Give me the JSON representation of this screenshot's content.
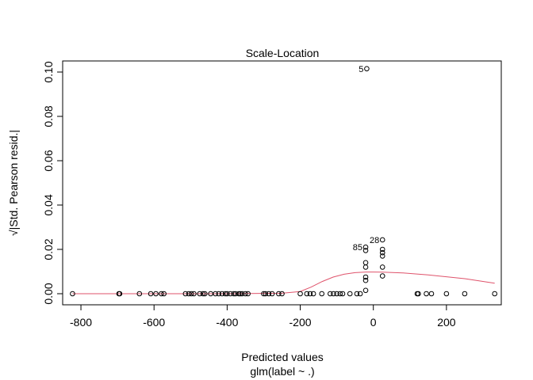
{
  "chart_data": {
    "type": "scatter",
    "title": "Scale-Location",
    "xlabel": "Predicted values",
    "xlabel_sub": "glm(label ~ .)",
    "ylabel": "√|Std. Pearson resid.|",
    "xlim": [
      -850,
      350
    ],
    "ylim": [
      -0.005,
      0.105
    ],
    "x_ticks": [
      -800,
      -600,
      -400,
      -200,
      0,
      200
    ],
    "x_tick_labels": [
      "-800",
      "-600",
      "-400",
      "-200",
      "0",
      "200"
    ],
    "y_ticks": [
      0.0,
      0.02,
      0.04,
      0.06,
      0.08,
      0.1
    ],
    "y_tick_labels": [
      "0.00",
      "0.02",
      "0.04",
      "0.06",
      "0.08",
      "0.10"
    ],
    "points": [
      {
        "x": -823,
        "y": 0.0
      },
      {
        "x": -696,
        "y": 0.0
      },
      {
        "x": -694,
        "y": 0.0
      },
      {
        "x": -640,
        "y": 0.0
      },
      {
        "x": -609,
        "y": 0.0
      },
      {
        "x": -595,
        "y": 0.0
      },
      {
        "x": -580,
        "y": 0.0
      },
      {
        "x": -573,
        "y": 0.0
      },
      {
        "x": -514,
        "y": 0.0
      },
      {
        "x": -505,
        "y": 0.0
      },
      {
        "x": -498,
        "y": 0.0
      },
      {
        "x": -491,
        "y": 0.0
      },
      {
        "x": -475,
        "y": 0.0
      },
      {
        "x": -466,
        "y": 0.0
      },
      {
        "x": -461,
        "y": 0.0
      },
      {
        "x": -445,
        "y": 0.0
      },
      {
        "x": -432,
        "y": 0.0
      },
      {
        "x": -423,
        "y": 0.0
      },
      {
        "x": -414,
        "y": 0.0
      },
      {
        "x": -405,
        "y": 0.0
      },
      {
        "x": -400,
        "y": 0.0
      },
      {
        "x": -391,
        "y": 0.0
      },
      {
        "x": -382,
        "y": 0.0
      },
      {
        "x": -377,
        "y": 0.0
      },
      {
        "x": -368,
        "y": 0.0
      },
      {
        "x": -364,
        "y": 0.0
      },
      {
        "x": -359,
        "y": 0.0
      },
      {
        "x": -350,
        "y": 0.0
      },
      {
        "x": -343,
        "y": 0.0
      },
      {
        "x": -300,
        "y": 0.0
      },
      {
        "x": -295,
        "y": 0.0
      },
      {
        "x": -286,
        "y": 0.0
      },
      {
        "x": -277,
        "y": 0.0
      },
      {
        "x": -259,
        "y": 0.0
      },
      {
        "x": -250,
        "y": 0.0
      },
      {
        "x": -200,
        "y": 0.0
      },
      {
        "x": -182,
        "y": 0.0
      },
      {
        "x": -173,
        "y": 0.0
      },
      {
        "x": -164,
        "y": 0.0
      },
      {
        "x": -141,
        "y": 0.0
      },
      {
        "x": -118,
        "y": 0.0
      },
      {
        "x": -109,
        "y": 0.0
      },
      {
        "x": -100,
        "y": 0.0
      },
      {
        "x": -91,
        "y": 0.0
      },
      {
        "x": -84,
        "y": 0.0
      },
      {
        "x": -64,
        "y": 0.0
      },
      {
        "x": -45,
        "y": 0.0
      },
      {
        "x": -36,
        "y": 0.0
      },
      {
        "x": -21,
        "y": 0.0015
      },
      {
        "x": -21,
        "y": 0.006
      },
      {
        "x": -21,
        "y": 0.0075
      },
      {
        "x": -21,
        "y": 0.012
      },
      {
        "x": -21,
        "y": 0.014
      },
      {
        "x": -21,
        "y": 0.0195
      },
      {
        "x": -21,
        "y": 0.021
      },
      {
        "x": -18,
        "y": 0.1015
      },
      {
        "x": 25,
        "y": 0.008
      },
      {
        "x": 25,
        "y": 0.012
      },
      {
        "x": 25,
        "y": 0.017
      },
      {
        "x": 25,
        "y": 0.0185
      },
      {
        "x": 25,
        "y": 0.02
      },
      {
        "x": 25,
        "y": 0.0243
      },
      {
        "x": 120,
        "y": 0.0
      },
      {
        "x": 123,
        "y": 0.0
      },
      {
        "x": 145,
        "y": 0.0
      },
      {
        "x": 159,
        "y": 0.0
      },
      {
        "x": 200,
        "y": 0.0
      },
      {
        "x": 250,
        "y": 0.0
      },
      {
        "x": 332,
        "y": 0.0
      }
    ],
    "point_labels": [
      {
        "text": "5",
        "x": -18,
        "y": 0.1015
      },
      {
        "text": "28",
        "x": 25,
        "y": 0.0243
      },
      {
        "text": "85",
        "x": -21,
        "y": 0.021
      }
    ],
    "smooth_line": {
      "color": "#DF536B",
      "x": [
        -823,
        -600,
        -400,
        -250,
        -200,
        -170,
        -140,
        -110,
        -80,
        -50,
        -20,
        0,
        25,
        80,
        150,
        250,
        332
      ],
      "y": [
        0.0,
        0.0,
        0.0,
        0.0002,
        0.001,
        0.003,
        0.0055,
        0.0075,
        0.0088,
        0.0095,
        0.0098,
        0.0098,
        0.0097,
        0.0094,
        0.0085,
        0.0068,
        0.0047
      ]
    }
  }
}
